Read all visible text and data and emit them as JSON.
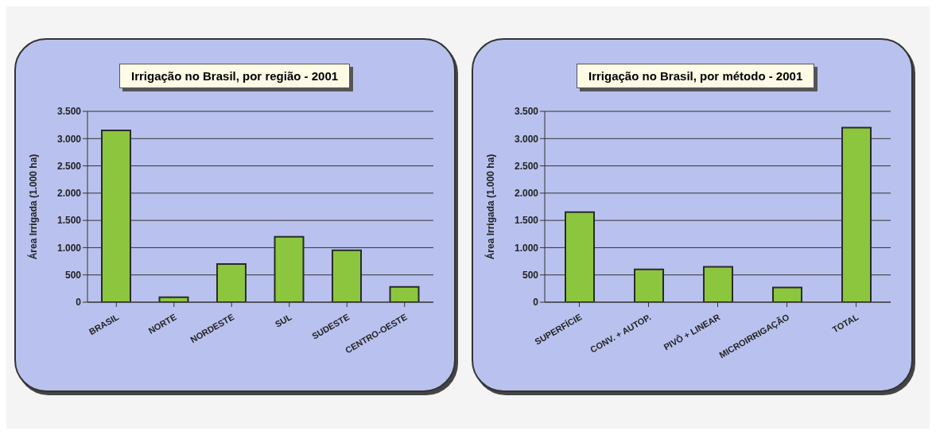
{
  "chart_data": [
    {
      "type": "bar",
      "title": "Irrigação no Brasil, por região - 2001",
      "ylabel": "Área Irrigada (1.000 ha)",
      "categories": [
        "BRASIL",
        "NORTE",
        "NORDESTE",
        "SUL",
        "SUDESTE",
        "CENTRO-OESTE"
      ],
      "values": [
        3150,
        90,
        700,
        1200,
        950,
        280
      ],
      "color": "#8cc63e",
      "ylim": [
        0,
        3500
      ],
      "yticks": [
        {
          "value": 0,
          "label": "0"
        },
        {
          "value": 500,
          "label": "500"
        },
        {
          "value": 1000,
          "label": "1.000"
        },
        {
          "value": 1500,
          "label": "1.500"
        },
        {
          "value": 2000,
          "label": "2.000"
        },
        {
          "value": 2500,
          "label": "2.500"
        },
        {
          "value": 3000,
          "label": "3.000"
        },
        {
          "value": 3500,
          "label": "3.500"
        }
      ],
      "grid": "y"
    },
    {
      "type": "bar",
      "title": "Irrigação no Brasil, por método - 2001",
      "ylabel": "Área Irrigada (1.000 ha)",
      "categories": [
        "SUPERFÍCIE",
        "CONV. + AUTOP.",
        "PIVÔ + LINEAR",
        "MICROIRRIGAÇÃO",
        "TOTAL"
      ],
      "values": [
        1650,
        600,
        650,
        270,
        3200
      ],
      "color": "#8cc63e",
      "ylim": [
        0,
        3500
      ],
      "yticks": [
        {
          "value": 0,
          "label": "0"
        },
        {
          "value": 500,
          "label": "500"
        },
        {
          "value": 1000,
          "label": "1.000"
        },
        {
          "value": 1500,
          "label": "1.500"
        },
        {
          "value": 2000,
          "label": "2.000"
        },
        {
          "value": 2500,
          "label": "2.500"
        },
        {
          "value": 3000,
          "label": "3.000"
        },
        {
          "value": 3500,
          "label": "3.500"
        }
      ],
      "grid": "y"
    }
  ]
}
